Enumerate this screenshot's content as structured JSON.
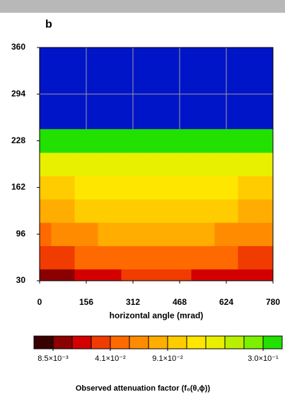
{
  "chart_data": {
    "type": "contour",
    "panel_label": "b",
    "xlabel": "horizontal angle (mrad)",
    "xlim": [
      0,
      780
    ],
    "xticks": [
      0,
      156,
      312,
      468,
      624,
      780
    ],
    "ylim": [
      30,
      360
    ],
    "yticks": [
      30,
      96,
      162,
      228,
      294,
      360
    ],
    "grid": true,
    "background_color": "#0015c8",
    "x": [
      0,
      78,
      156,
      234,
      312,
      390,
      468,
      546,
      624,
      702,
      780
    ],
    "y": [
      30,
      63,
      96,
      129,
      162,
      195,
      228,
      261,
      294,
      327,
      360
    ],
    "z": [
      [
        0.012,
        0.016,
        0.022,
        0.026,
        0.028,
        0.028,
        0.027,
        0.024,
        0.02,
        0.018,
        0.02
      ],
      [
        0.03,
        0.035,
        0.042,
        0.048,
        0.052,
        0.053,
        0.052,
        0.048,
        0.043,
        0.038,
        0.036
      ],
      [
        0.055,
        0.06,
        0.068,
        0.075,
        0.078,
        0.08,
        0.078,
        0.074,
        0.068,
        0.062,
        0.058
      ],
      [
        0.08,
        0.086,
        0.094,
        0.1,
        0.104,
        0.105,
        0.104,
        0.1,
        0.094,
        0.088,
        0.085
      ],
      [
        0.11,
        0.115,
        0.12,
        0.125,
        0.13,
        0.13,
        0.13,
        0.125,
        0.12,
        0.115,
        0.115
      ],
      [
        0.17,
        0.175,
        0.18,
        0.18,
        0.185,
        0.185,
        0.185,
        0.18,
        0.18,
        0.175,
        0.175
      ],
      [
        0.3,
        0.3,
        0.3,
        0.3,
        0.3,
        0.31,
        0.31,
        0.33,
        0.39,
        0.34,
        0.31
      ],
      [
        null,
        null,
        null,
        null,
        null,
        null,
        null,
        null,
        null,
        null,
        null
      ],
      [
        null,
        null,
        null,
        null,
        null,
        null,
        null,
        null,
        null,
        null,
        null
      ],
      [
        null,
        null,
        null,
        null,
        null,
        null,
        null,
        null,
        null,
        null,
        null
      ],
      [
        null,
        null,
        null,
        null,
        null,
        null,
        null,
        null,
        null,
        null,
        null
      ]
    ],
    "colorbar": {
      "title": "Observed attenuation factor (f₀(θ,ϕ))",
      "levels": [
        0.005,
        0.0085,
        0.017,
        0.027,
        0.041,
        0.057,
        0.073,
        0.091,
        0.12,
        0.15,
        0.19,
        0.24,
        0.3,
        0.38
      ],
      "colors": [
        "#3a0000",
        "#8b0000",
        "#d40000",
        "#f03c00",
        "#ff6a00",
        "#ff8c00",
        "#ffad00",
        "#ffcc00",
        "#ffe600",
        "#e8f000",
        "#b8f000",
        "#7cf000",
        "#22e000"
      ],
      "ticks": [
        {
          "value": 0.0085,
          "label": "8.5×10⁻³"
        },
        {
          "value": 0.041,
          "label": "4.1×10⁻²"
        },
        {
          "value": 0.091,
          "label": "9.1×10⁻²"
        },
        {
          "value": 0.3,
          "label": "3.0×10⁻¹"
        }
      ]
    }
  }
}
